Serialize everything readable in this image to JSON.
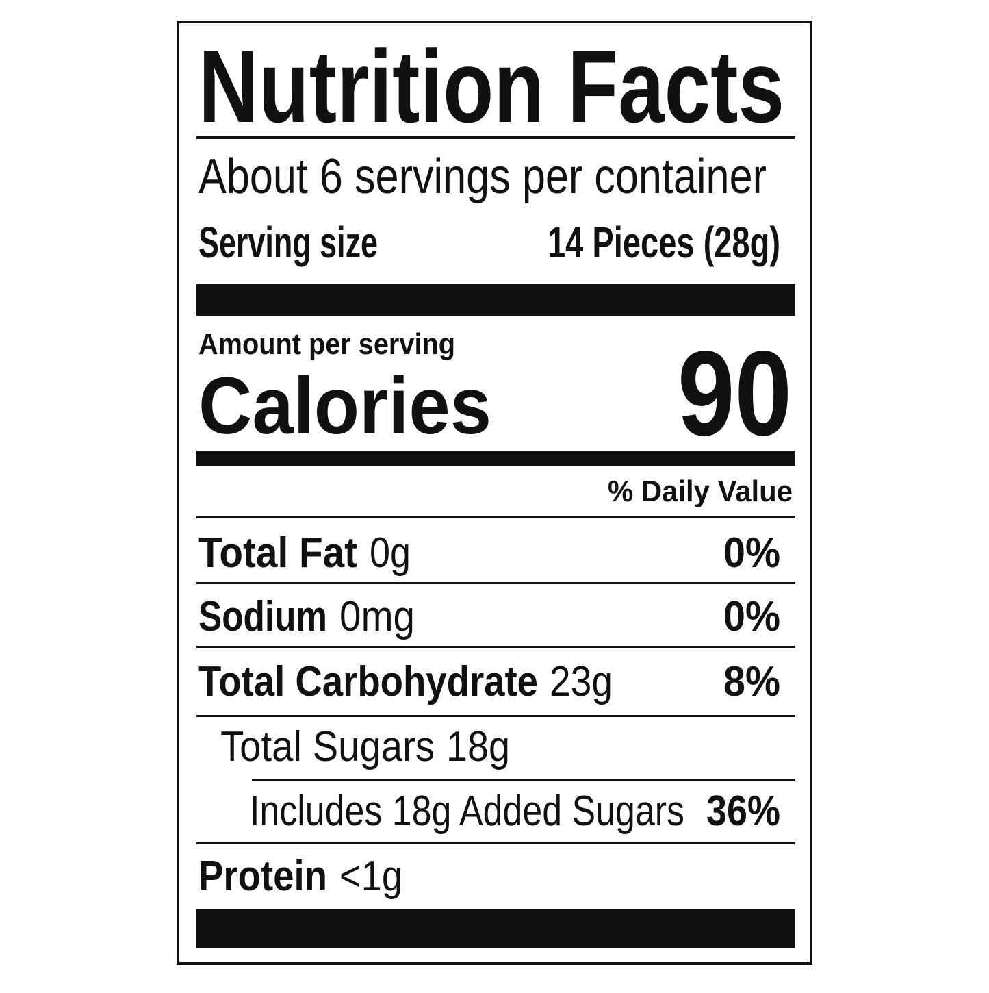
{
  "title": "Nutrition Facts",
  "servings_per_container": "About 6 servings per container",
  "serving_size": {
    "label": "Serving size",
    "value": "14 Pieces (28g)"
  },
  "amount_per_serving": "Amount per serving",
  "calories": {
    "label": "Calories",
    "value": 90
  },
  "daily_value_header": "% Daily Value",
  "nutrients": [
    {
      "name": "Total Fat",
      "amount": "0g",
      "daily_value": "0%"
    },
    {
      "name": "Sodium",
      "amount": "0mg",
      "daily_value": "0%"
    },
    {
      "name": "Total Carbohydrate",
      "amount": "23g",
      "daily_value": "8%"
    },
    {
      "name": "Total Sugars",
      "amount": "18g"
    },
    {
      "name": "Includes 18g Added Sugars",
      "daily_value": "36%"
    },
    {
      "name": "Protein",
      "amount": "<1g"
    }
  ]
}
